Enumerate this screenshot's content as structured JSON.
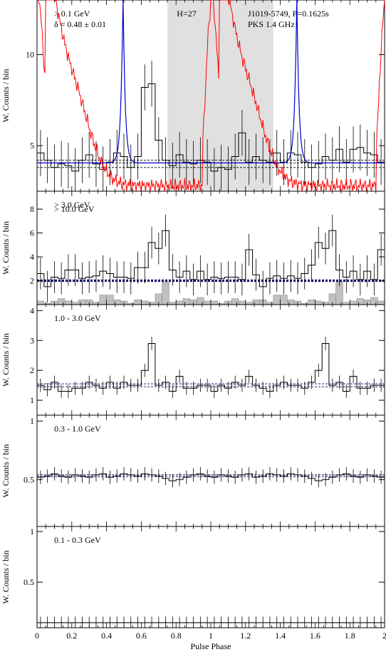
{
  "chart_data": [
    {
      "type": "line",
      "panel_label": "> 0.1 GeV",
      "annotation_delta": "δ = 0.48 ± 0.01",
      "annotation_h": "H=27",
      "pulsar_label": "J1019-5749, P=0.1625s",
      "radio_label": "PKS 1.4 GHz",
      "ylabel": "W. Counts / bin",
      "ylim": [
        2.5,
        13
      ],
      "yticks": [
        5,
        10
      ],
      "shaded_phase": [
        0.75,
        1.36
      ],
      "background_levels": [
        3.8,
        4.05,
        4.2
      ],
      "histogram": [
        4.6,
        4.2,
        3.8,
        4.0,
        3.9,
        3.6,
        4.2,
        4.5,
        4.0,
        3.7,
        4.1,
        4.6,
        4.4,
        3.8,
        4.4,
        8.2,
        8.4,
        5.3,
        4.2,
        3.9,
        4.5,
        4.1,
        4.0,
        4.2,
        4.1,
        3.6,
        3.8,
        3.7,
        4.4,
        5.7,
        4.1,
        4.4,
        4.2,
        4.1,
        4.6,
        4.1,
        4.6,
        4.5,
        4.1,
        3.8,
        4.0,
        4.4,
        4.2,
        4.8,
        4.1,
        4.8,
        4.9,
        4.6,
        4.5,
        4.1
      ]
    },
    {
      "type": "line",
      "panel_label": "> 3.0 GeV",
      "panel_label_2": "> 10.0 GeV",
      "ylabel": "W. Counts / bin",
      "ylim": [
        0,
        9.5
      ],
      "yticks": [
        2,
        4,
        6,
        8
      ],
      "background_levels": [
        1.95,
        2.05
      ],
      "histogram": [
        2.6,
        1.5,
        2.3,
        2.2,
        2.9,
        2.9,
        2.2,
        2.3,
        2.4,
        2.8,
        2.6,
        2.3,
        2.3,
        2.2,
        3.1,
        3.1,
        5.2,
        4.7,
        6.2,
        2.9,
        2.3,
        2.8,
        2.1,
        2.8,
        2.1,
        2.3,
        2.2,
        2.3,
        2.3,
        2.1,
        4.6,
        2.5,
        1.5,
        2.2,
        2.4,
        2.2,
        2.4,
        2.2,
        2.6,
        3.3,
        5.2,
        4.7,
        6.2,
        2.9,
        2.3,
        2.8,
        2.1,
        2.8,
        2.1,
        4.6
      ],
      "histogram_high": [
        0.3,
        0.1,
        0.3,
        0.5,
        0.3,
        0.2,
        0.4,
        0.4,
        0.2,
        0.8,
        0.8,
        0.4,
        0.3,
        0.1,
        0.4,
        0.3,
        0.2,
        0.9,
        1.9,
        0.2,
        0.3,
        0.5,
        0.4,
        0.6,
        0.3,
        0.3,
        0.1,
        0.3,
        0.5,
        0.3,
        0.2,
        0.4,
        0.4,
        0.2,
        0.8,
        0.8,
        0.4,
        0.3,
        0.1,
        0.4,
        0.3,
        0.2,
        0.9,
        1.9,
        0.2,
        0.3,
        0.5,
        0.4,
        0.6,
        0.3
      ]
    },
    {
      "type": "line",
      "panel_label": "1.0 - 3.0 GeV",
      "ylabel": "W. Counts / bin",
      "ylim": [
        0.5,
        4.2
      ],
      "yticks": [
        1,
        2,
        3,
        4
      ],
      "background_levels": [
        1.45,
        1.55
      ],
      "histogram": [
        1.5,
        1.35,
        1.6,
        1.3,
        1.3,
        1.4,
        1.4,
        1.6,
        1.5,
        1.4,
        1.6,
        1.4,
        1.6,
        1.5,
        1.5,
        2.0,
        2.9,
        1.5,
        1.6,
        1.3,
        1.8,
        1.4,
        1.4,
        1.5,
        1.5,
        1.3,
        1.5,
        1.4,
        1.6,
        1.5,
        1.8,
        1.5,
        1.4,
        1.3,
        1.5,
        1.6,
        1.5,
        1.5,
        1.4,
        1.6,
        2.0,
        2.9,
        1.5,
        1.6,
        1.3,
        1.8,
        1.4,
        1.4,
        1.5,
        1.5
      ]
    },
    {
      "type": "line",
      "panel_label": "0.3 - 1.0 GeV",
      "ylabel": "W. Counts / bin",
      "ylim": [
        0.1,
        1.05
      ],
      "yticks": [
        0.5,
        1
      ],
      "background_levels": [
        0.525,
        0.54
      ],
      "histogram": [
        0.52,
        0.53,
        0.55,
        0.53,
        0.52,
        0.54,
        0.53,
        0.52,
        0.54,
        0.55,
        0.52,
        0.53,
        0.55,
        0.54,
        0.53,
        0.55,
        0.54,
        0.53,
        0.51,
        0.49,
        0.5,
        0.52,
        0.54,
        0.55,
        0.53,
        0.52,
        0.54,
        0.53,
        0.52,
        0.54,
        0.55,
        0.52,
        0.53,
        0.55,
        0.54,
        0.53,
        0.55,
        0.54,
        0.53,
        0.51,
        0.49,
        0.5,
        0.52,
        0.54,
        0.55,
        0.53,
        0.52,
        0.54,
        0.53,
        0.52
      ]
    },
    {
      "type": "line",
      "panel_label": "0.1 - 0.3 GeV",
      "ylabel": "W. Counts / bin",
      "ylim": [
        0.05,
        1.05
      ],
      "yticks": [
        0.5,
        1
      ],
      "background_levels": [
        0.1
      ],
      "histogram": [
        0.1,
        0.1,
        0.1,
        0.1,
        0.1,
        0.1,
        0.1,
        0.1,
        0.1,
        0.1,
        0.1,
        0.1,
        0.1,
        0.1,
        0.1,
        0.1,
        0.1,
        0.1,
        0.1,
        0.1,
        0.1,
        0.1,
        0.1,
        0.1,
        0.1,
        0.1,
        0.1,
        0.1,
        0.1,
        0.1,
        0.1,
        0.1,
        0.1,
        0.1,
        0.1,
        0.1,
        0.1,
        0.1,
        0.1,
        0.1,
        0.1,
        0.1,
        0.1,
        0.1,
        0.1,
        0.1,
        0.1,
        0.1,
        0.1,
        0.1
      ]
    }
  ],
  "xaxis": {
    "xlabel": "Pulse Phase",
    "xlim": [
      0,
      2
    ],
    "ticks": [
      "0",
      "0.2",
      "0.4",
      "0.6",
      "0.8",
      "1",
      "1.2",
      "1.4",
      "1.6",
      "1.8",
      "2"
    ]
  },
  "colors": {
    "radio": "#ff0000",
    "pulsar_label": "#00cc00",
    "model": "#0000cc",
    "shade": "#e0e0e0",
    "high_energy_fill": "#c0c0c0"
  }
}
